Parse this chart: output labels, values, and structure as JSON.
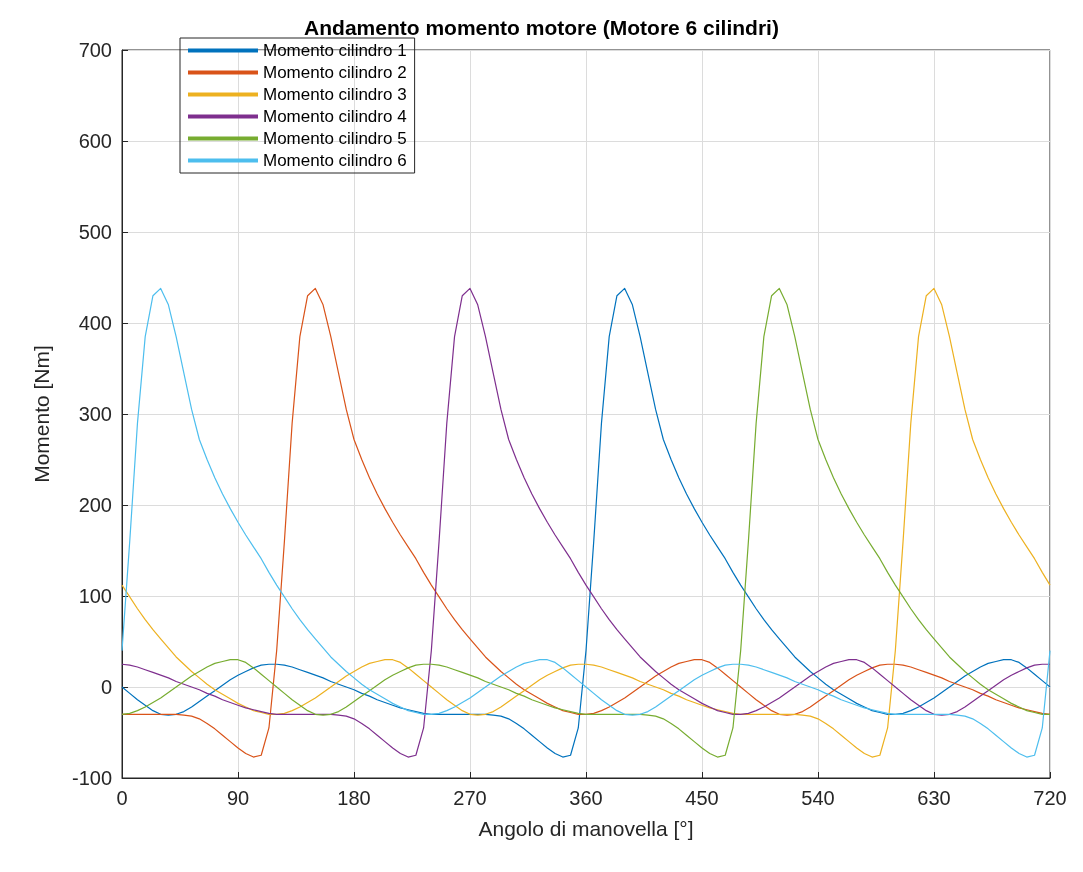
{
  "chart_data": {
    "type": "line",
    "title": "Andamento momento motore (Motore 6 cilindri)",
    "xlabel": "Angolo di manovella [°]",
    "ylabel": "Momento [Nm]",
    "x": [
      0,
      6,
      12,
      18,
      24,
      30,
      36,
      42,
      48,
      54,
      60,
      66,
      72,
      78,
      84,
      90,
      96,
      102,
      108,
      114,
      120,
      126,
      132,
      138,
      144,
      150,
      156,
      162,
      168,
      174,
      180,
      186,
      192,
      198,
      204,
      210,
      216,
      222,
      228,
      234,
      240,
      246,
      252,
      258,
      264,
      270,
      276,
      282,
      288,
      294,
      300,
      306,
      312,
      318,
      324,
      330,
      336,
      342,
      348,
      354,
      360,
      366,
      372,
      378,
      384,
      390,
      396,
      402,
      408,
      414,
      420,
      426,
      432,
      438,
      444,
      450,
      456,
      462,
      468,
      474,
      480,
      486,
      492,
      498,
      504,
      510,
      516,
      522,
      528,
      534,
      540,
      546,
      552,
      558,
      564,
      570,
      576,
      582,
      588,
      594,
      600,
      606,
      612,
      618,
      624,
      630,
      636,
      642,
      648,
      654,
      660,
      666,
      672,
      678,
      684,
      690,
      696,
      702,
      708,
      714,
      720
    ],
    "series": [
      {
        "name": "Momento cilindro 1",
        "color": "#0072bd",
        "values": [
          0,
          -7,
          -14,
          -20,
          -26,
          -30,
          -31,
          -30,
          -27,
          -22,
          -16,
          -10,
          -4,
          2,
          8,
          13,
          17,
          21,
          24,
          25,
          25,
          24,
          22,
          19,
          16,
          13,
          10,
          6,
          3,
          0,
          -3,
          -7,
          -10,
          -14,
          -17,
          -20,
          -23,
          -25,
          -27,
          -29,
          -30,
          -30,
          -30,
          -30,
          -30,
          -30,
          -30,
          -30,
          -31,
          -32,
          -35,
          -40,
          -46,
          -53,
          -60,
          -67,
          -73,
          -77,
          -75,
          -45,
          40,
          160,
          290,
          385,
          430,
          438,
          420,
          385,
          345,
          305,
          272,
          250,
          230,
          212,
          196,
          181,
          167,
          154,
          141,
          126,
          112,
          99,
          86,
          74,
          63,
          53,
          43,
          33,
          25,
          17,
          10,
          3,
          -3,
          -8,
          -13,
          -18,
          -22,
          -26,
          -28,
          -30,
          -30,
          -29,
          -26,
          -22,
          -17,
          -12,
          -6,
          0,
          6,
          12,
          17,
          22,
          26,
          28,
          30,
          30,
          27,
          21,
          14,
          7,
          0
        ]
      },
      {
        "name": "Momento cilindro 2",
        "color": "#d95319",
        "values": [
          -30,
          -30,
          -30,
          -30,
          -30,
          -30,
          -30,
          -30,
          -31,
          -32,
          -35,
          -40,
          -46,
          -53,
          -60,
          -67,
          -73,
          -77,
          -75,
          -45,
          40,
          160,
          290,
          385,
          430,
          438,
          420,
          385,
          345,
          305,
          272,
          250,
          230,
          212,
          196,
          181,
          167,
          154,
          141,
          126,
          112,
          99,
          86,
          74,
          63,
          53,
          43,
          33,
          25,
          17,
          10,
          3,
          -3,
          -8,
          -13,
          -18,
          -22,
          -26,
          -28,
          -30,
          -30,
          -29,
          -26,
          -22,
          -17,
          -12,
          -6,
          0,
          6,
          12,
          17,
          22,
          26,
          28,
          30,
          30,
          27,
          21,
          14,
          7,
          0,
          -7,
          -14,
          -20,
          -26,
          -30,
          -31,
          -30,
          -27,
          -22,
          -16,
          -10,
          -4,
          2,
          8,
          13,
          17,
          21,
          24,
          25,
          25,
          24,
          22,
          19,
          16,
          13,
          10,
          6,
          3,
          0,
          -3,
          -7,
          -10,
          -14,
          -17,
          -20,
          -23,
          -25,
          -27,
          -29,
          -30
        ]
      },
      {
        "name": "Momento cilindro 3",
        "color": "#edb120",
        "values": [
          112,
          99,
          86,
          74,
          63,
          53,
          43,
          33,
          25,
          17,
          10,
          3,
          -3,
          -8,
          -13,
          -18,
          -22,
          -26,
          -28,
          -30,
          -30,
          -29,
          -26,
          -22,
          -17,
          -12,
          -6,
          0,
          6,
          12,
          17,
          22,
          26,
          28,
          30,
          30,
          27,
          21,
          14,
          7,
          0,
          -7,
          -14,
          -20,
          -26,
          -30,
          -31,
          -30,
          -27,
          -22,
          -16,
          -10,
          -4,
          2,
          8,
          13,
          17,
          21,
          24,
          25,
          25,
          24,
          22,
          19,
          16,
          13,
          10,
          6,
          3,
          0,
          -3,
          -7,
          -10,
          -14,
          -17,
          -20,
          -23,
          -25,
          -27,
          -29,
          -30,
          -30,
          -30,
          -30,
          -30,
          -30,
          -30,
          -30,
          -31,
          -32,
          -35,
          -40,
          -46,
          -53,
          -60,
          -67,
          -73,
          -77,
          -75,
          -45,
          40,
          160,
          290,
          385,
          430,
          438,
          420,
          385,
          345,
          305,
          272,
          250,
          230,
          212,
          196,
          181,
          167,
          154,
          141,
          126,
          112
        ]
      },
      {
        "name": "Momento cilindro 4",
        "color": "#7e2f8e",
        "values": [
          25,
          24,
          22,
          19,
          16,
          13,
          10,
          6,
          3,
          0,
          -3,
          -7,
          -10,
          -14,
          -17,
          -20,
          -23,
          -25,
          -27,
          -29,
          -30,
          -30,
          -30,
          -30,
          -30,
          -30,
          -30,
          -30,
          -31,
          -32,
          -35,
          -40,
          -46,
          -53,
          -60,
          -67,
          -73,
          -77,
          -75,
          -45,
          40,
          160,
          290,
          385,
          430,
          438,
          420,
          385,
          345,
          305,
          272,
          250,
          230,
          212,
          196,
          181,
          167,
          154,
          141,
          126,
          112,
          99,
          86,
          74,
          63,
          53,
          43,
          33,
          25,
          17,
          10,
          3,
          -3,
          -8,
          -13,
          -18,
          -22,
          -26,
          -28,
          -30,
          -30,
          -29,
          -26,
          -22,
          -17,
          -12,
          -6,
          0,
          6,
          12,
          17,
          22,
          26,
          28,
          30,
          30,
          27,
          21,
          14,
          7,
          0,
          -7,
          -14,
          -20,
          -26,
          -30,
          -31,
          -30,
          -27,
          -22,
          -16,
          -10,
          -4,
          2,
          8,
          13,
          17,
          21,
          24,
          25,
          25
        ]
      },
      {
        "name": "Momento cilindro 5",
        "color": "#77ac30",
        "values": [
          -30,
          -29,
          -26,
          -22,
          -17,
          -12,
          -6,
          0,
          6,
          12,
          17,
          22,
          26,
          28,
          30,
          30,
          27,
          21,
          14,
          7,
          0,
          -7,
          -14,
          -20,
          -26,
          -30,
          -31,
          -30,
          -27,
          -22,
          -16,
          -10,
          -4,
          2,
          8,
          13,
          17,
          21,
          24,
          25,
          25,
          24,
          22,
          19,
          16,
          13,
          10,
          6,
          3,
          0,
          -3,
          -7,
          -10,
          -14,
          -17,
          -20,
          -23,
          -25,
          -27,
          -29,
          -30,
          -30,
          -30,
          -30,
          -30,
          -30,
          -30,
          -30,
          -31,
          -32,
          -35,
          -40,
          -46,
          -53,
          -60,
          -67,
          -73,
          -77,
          -75,
          -45,
          40,
          160,
          290,
          385,
          430,
          438,
          420,
          385,
          345,
          305,
          272,
          250,
          230,
          212,
          196,
          181,
          167,
          154,
          141,
          126,
          112,
          99,
          86,
          74,
          63,
          53,
          43,
          33,
          25,
          17,
          10,
          3,
          -3,
          -8,
          -13,
          -18,
          -22,
          -26,
          -28,
          -30,
          -30
        ]
      },
      {
        "name": "Momento cilindro 6",
        "color": "#4dbeee",
        "values": [
          40,
          160,
          290,
          385,
          430,
          438,
          420,
          385,
          345,
          305,
          272,
          250,
          230,
          212,
          196,
          181,
          167,
          154,
          141,
          126,
          112,
          99,
          86,
          74,
          63,
          53,
          43,
          33,
          25,
          17,
          10,
          3,
          -3,
          -8,
          -13,
          -18,
          -22,
          -26,
          -28,
          -30,
          -30,
          -29,
          -26,
          -22,
          -17,
          -12,
          -6,
          0,
          6,
          12,
          17,
          22,
          26,
          28,
          30,
          30,
          27,
          21,
          14,
          7,
          0,
          -7,
          -14,
          -20,
          -26,
          -30,
          -31,
          -30,
          -27,
          -22,
          -16,
          -10,
          -4,
          2,
          8,
          13,
          17,
          21,
          24,
          25,
          25,
          24,
          22,
          19,
          16,
          13,
          10,
          6,
          3,
          0,
          -3,
          -7,
          -10,
          -14,
          -17,
          -20,
          -23,
          -25,
          -27,
          -29,
          -30,
          -30,
          -30,
          -30,
          -30,
          -30,
          -30,
          -30,
          -31,
          -32,
          -35,
          -40,
          -46,
          -53,
          -60,
          -67,
          -73,
          -77,
          -75,
          -45,
          40
        ]
      }
    ],
    "xlim": [
      0,
      720
    ],
    "xticks": [
      0,
      90,
      180,
      270,
      360,
      450,
      540,
      630,
      720
    ],
    "ylim": [
      -100,
      700
    ],
    "yticks": [
      -100,
      0,
      100,
      200,
      300,
      400,
      500,
      600,
      700
    ],
    "grid": true,
    "legend": "top left",
    "marker": "none",
    "line_style": "solid"
  }
}
